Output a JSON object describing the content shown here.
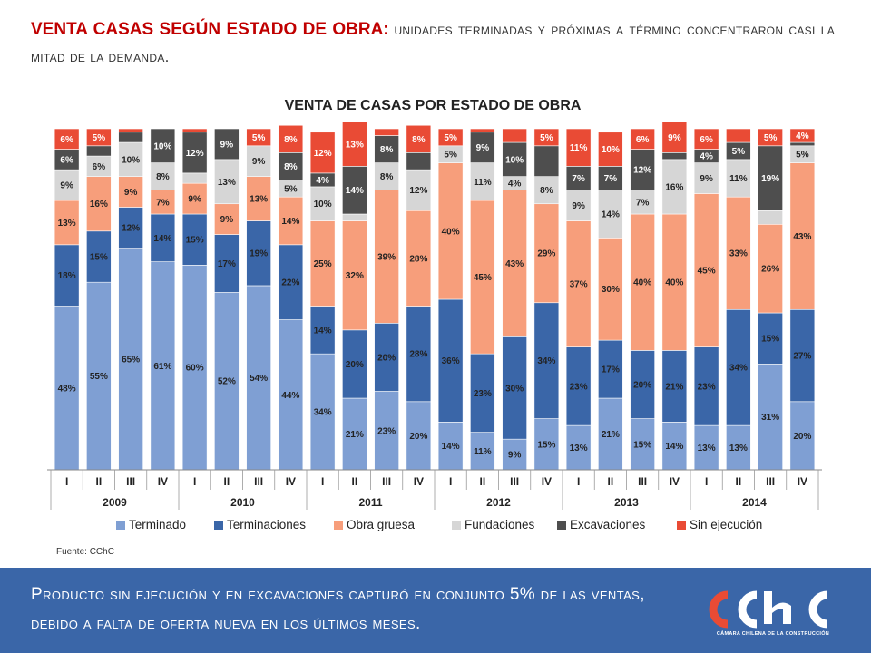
{
  "headline": {
    "strong": "VENTA CASAS SEGÚN ESTADO DE OBRA:",
    "rest": "unidades terminadas y próximas a término concentraron casi la mitad de la demanda."
  },
  "footer": {
    "text": "Producto sin ejecución y en excavaciones capturó en conjunto 5% de las ventas, debido a falta de oferta nueva en los últimos meses.",
    "logo_caption": "CÁMARA CHILENA DE LA CONSTRUCCIÓN"
  },
  "source": "Fuente: CChC",
  "chart_data": {
    "type": "bar",
    "stacked": true,
    "percent_stacked": true,
    "title": "VENTA DE CASAS POR ESTADO DE OBRA",
    "categories": [
      "I",
      "II",
      "III",
      "IV",
      "I",
      "II",
      "III",
      "IV",
      "I",
      "II",
      "III",
      "IV",
      "I",
      "II",
      "III",
      "IV",
      "I",
      "II",
      "III",
      "IV",
      "I",
      "II",
      "III",
      "IV"
    ],
    "years": [
      {
        "label": "2009",
        "span": 4
      },
      {
        "label": "2010",
        "span": 4
      },
      {
        "label": "2011",
        "span": 4
      },
      {
        "label": "2012",
        "span": 4
      },
      {
        "label": "2013",
        "span": 4
      },
      {
        "label": "2014",
        "span": 4
      }
    ],
    "ylim": [
      0,
      100
    ],
    "series": [
      {
        "name": "Terminado",
        "color": "#7f9fd3",
        "label_color": "#222222",
        "values": [
          48,
          55,
          65,
          61,
          60,
          52,
          54,
          44,
          34,
          21,
          23,
          20,
          14,
          11,
          9,
          15,
          13,
          21,
          15,
          14,
          13,
          13,
          31,
          20
        ]
      },
      {
        "name": "Terminaciones",
        "color": "#3a66a8",
        "label_color": "#222222",
        "values": [
          18,
          15,
          12,
          14,
          15,
          17,
          19,
          22,
          14,
          20,
          20,
          28,
          36,
          23,
          30,
          34,
          23,
          17,
          20,
          21,
          23,
          34,
          15,
          27
        ]
      },
      {
        "name": "Obra gruesa",
        "color": "#f79e7b",
        "label_color": "#222222",
        "values": [
          13,
          16,
          9,
          7,
          9,
          9,
          13,
          14,
          25,
          32,
          39,
          28,
          40,
          45,
          43,
          29,
          37,
          30,
          40,
          40,
          45,
          33,
          26,
          43
        ]
      },
      {
        "name": "Fundaciones",
        "color": "#d6d6d6",
        "label_color": "#222222",
        "values": [
          9,
          6,
          10,
          8,
          3,
          13,
          9,
          5,
          10,
          2,
          8,
          12,
          5,
          11,
          4,
          8,
          9,
          14,
          7,
          16,
          9,
          11,
          4,
          5
        ]
      },
      {
        "name": "Excavaciones",
        "color": "#4e4e4e",
        "label_color": "#ffffff",
        "values": [
          6,
          3,
          3,
          10,
          12,
          9,
          0,
          8,
          4,
          14,
          8,
          5,
          0,
          9,
          10,
          9,
          7,
          7,
          12,
          2,
          4,
          5,
          19,
          1
        ]
      },
      {
        "name": "Sin ejecución",
        "color": "#e94b35",
        "label_color": "#ffffff",
        "values": [
          6,
          5,
          1,
          0,
          1,
          0,
          5,
          8,
          12,
          13,
          2,
          8,
          5,
          1,
          4,
          5,
          11,
          10,
          6,
          9,
          6,
          4,
          5,
          4
        ]
      }
    ],
    "labels": [
      [
        "48%",
        "55%",
        "65%",
        "61%",
        "60%",
        "52%",
        "54%",
        "44%",
        "34%",
        "21%",
        "23%",
        "20%",
        "14%",
        "11%",
        "9%",
        "15%",
        "13%",
        "21%",
        "15%",
        "14%",
        "13%",
        "13%",
        "31%",
        "20%"
      ],
      [
        "18%",
        "15%",
        "12%",
        "14%",
        "15%",
        "17%",
        "19%",
        "22%",
        "14%",
        "20%",
        "20%",
        "28%",
        "36%",
        "23%",
        "30%",
        "34%",
        "23%",
        "17%",
        "20%",
        "21%",
        "23%",
        "34%",
        "15%",
        "27%"
      ],
      [
        "13%",
        "16%",
        "9%",
        "7%",
        "9%",
        "9%",
        "13%",
        "14%",
        "25%",
        "32%",
        "39%",
        "28%",
        "40%",
        "45%",
        "43%",
        "29%",
        "37%",
        "30%",
        "40%",
        "40%",
        "45%",
        "33%",
        "26%",
        "43%"
      ],
      [
        "9%",
        "6%",
        "10%",
        "8%",
        "",
        "13%",
        "9%",
        "5%",
        "10%",
        "",
        "8%",
        "12%",
        "5%",
        "11%",
        "4%",
        "8%",
        "9%",
        "14%",
        "7%",
        "16%",
        "9%",
        "11%",
        "",
        "5%"
      ],
      [
        "6%",
        "",
        "",
        "10%",
        "12%",
        "9%",
        "",
        "8%",
        "4%",
        "14%",
        "8%",
        "",
        "",
        "9%",
        "10%",
        "",
        "7%",
        "7%",
        "12%",
        "",
        "4%",
        "5%",
        "19%",
        ""
      ],
      [
        "6%",
        "5%",
        "",
        "",
        "",
        "",
        "5%",
        "8%",
        "12%",
        "13%",
        "",
        "8%",
        "5%",
        "",
        "",
        "5%",
        "11%",
        "10%",
        "6%",
        "9%",
        "6%",
        "",
        "5%",
        "4%"
      ]
    ],
    "legend": [
      "Terminado",
      "Terminaciones",
      "Obra gruesa",
      "Fundaciones",
      "Excavaciones",
      "Sin ejecución"
    ],
    "legend_placement": "bottom"
  }
}
